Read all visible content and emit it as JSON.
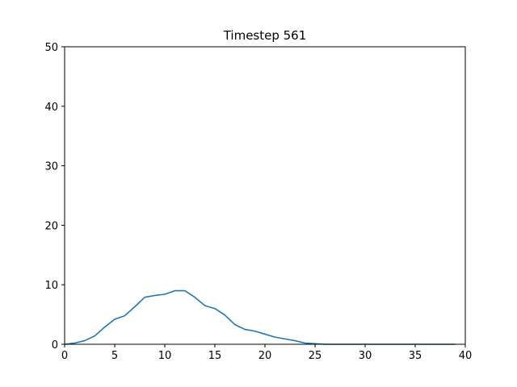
{
  "chart_data": {
    "type": "line",
    "title": "Timestep 561",
    "xlabel": "",
    "ylabel": "",
    "xlim": [
      0,
      40
    ],
    "ylim": [
      0,
      50
    ],
    "x_ticks": [
      0,
      5,
      10,
      15,
      20,
      25,
      30,
      35,
      40
    ],
    "y_ticks": [
      0,
      10,
      20,
      30,
      40,
      50
    ],
    "grid": false,
    "series": [
      {
        "color": "#1f77b4",
        "x": [
          0,
          1,
          2,
          3,
          4,
          5,
          6,
          7,
          8,
          9,
          10,
          11,
          12,
          13,
          14,
          15,
          16,
          17,
          18,
          19,
          20,
          21,
          22,
          23,
          24,
          25,
          26,
          27,
          28,
          29,
          30,
          31,
          32,
          33,
          34,
          35,
          36,
          37,
          38,
          39
        ],
        "y": [
          0,
          0.2,
          0.6,
          1.4,
          2.9,
          4.2,
          4.8,
          6.3,
          7.9,
          8.2,
          8.4,
          9.0,
          9.0,
          7.9,
          6.5,
          6.0,
          4.9,
          3.3,
          2.5,
          2.2,
          1.7,
          1.2,
          0.9,
          0.6,
          0.2,
          0.1,
          0,
          0,
          0,
          0,
          0,
          0,
          0,
          0,
          0,
          0,
          0,
          0,
          0,
          0
        ]
      }
    ]
  }
}
